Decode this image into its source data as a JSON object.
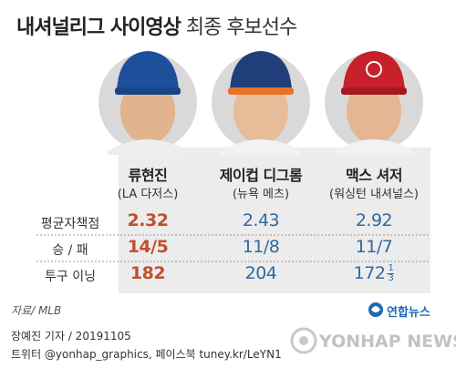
{
  "header": {
    "title_bold": "내셔널리그 사이영상",
    "title_light": "최종 후보선수"
  },
  "players": [
    {
      "name": "류현진",
      "team": "(LA 다저스)"
    },
    {
      "name": "제이컵 디그롬",
      "team": "(뉴욕 메츠)"
    },
    {
      "name": "맥스 셔저",
      "team": "(워싱턴 내셔널스)"
    }
  ],
  "table": {
    "rows": [
      {
        "label": "평균자책점",
        "values": [
          "2.32",
          "2.43",
          "2.92"
        ]
      },
      {
        "label": "승 / 패",
        "values": [
          "14/5",
          "11/8",
          "11/7"
        ]
      },
      {
        "label": "투구 이닝",
        "values": [
          "182",
          "204",
          "172"
        ]
      }
    ],
    "fraction": {
      "numerator": "1",
      "denominator": "3"
    }
  },
  "footer": {
    "source": "자료/ MLB",
    "logo": "연합뉴스",
    "byline": "장예진 기자 / 20191105",
    "social": "트위터 @yonhap_graphics, 페이스북 tuney.kr/LeYN1",
    "watermark": "YONHAP NEWS"
  }
}
